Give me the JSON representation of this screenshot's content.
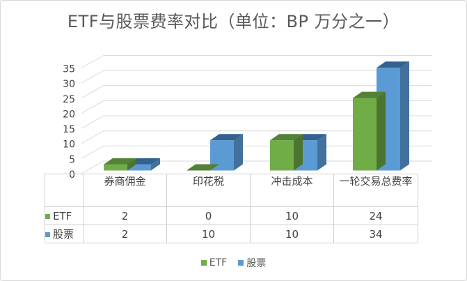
{
  "title": "ETF与股票费率对比（单位：BP 万分之一）",
  "chart_data": {
    "type": "bar",
    "style": "3d-clustered-column",
    "title": "ETF与股票费率对比（单位：BP 万分之一）",
    "categories": [
      "券商佣金",
      "印花税",
      "冲击成本",
      "一轮交易总费率"
    ],
    "series": [
      {
        "name": "ETF",
        "values": [
          2,
          0,
          10,
          24
        ],
        "color": "#70ad47",
        "color_top": "#538135",
        "color_side": "#4b7430"
      },
      {
        "name": "股票",
        "values": [
          2,
          10,
          10,
          34
        ],
        "color": "#5b9bd5",
        "color_top": "#336290",
        "color_side": "#41719c"
      }
    ],
    "xlabel": "",
    "ylabel": "",
    "ylim": [
      0,
      35
    ],
    "yticks": [
      0,
      5,
      10,
      15,
      20,
      25,
      30,
      35
    ],
    "grid": true,
    "legend_position": "bottom",
    "data_table_shown": true
  },
  "legend": {
    "items": [
      {
        "label": "ETF",
        "color": "#70ad47"
      },
      {
        "label": "股票",
        "color": "#5b9bd5"
      }
    ]
  },
  "colors": {
    "background": "#ffffff",
    "page_border": "#d9d9d9",
    "gridline": "#d9d9d9",
    "axis_text": "#404040",
    "title_text": "#595959",
    "table_border": "#cfcfcf",
    "table_text": "#404040"
  }
}
